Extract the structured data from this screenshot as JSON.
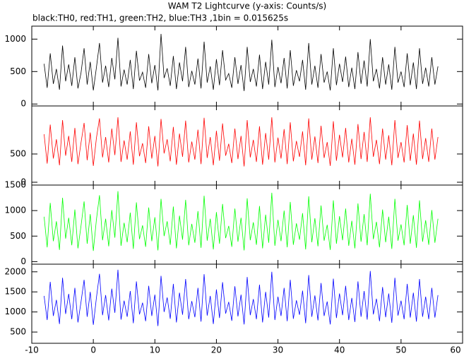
{
  "chart_data": {
    "type": "line",
    "title": "WAM T2 Lightcurve (y-axis: Counts/s)",
    "subtitle": "black:TH0, red:TH1, green:TH2, blue:TH3 ,1bin = 0.015625s",
    "xlim": [
      -10,
      60
    ],
    "xticks": [
      -10,
      0,
      10,
      20,
      30,
      40,
      50,
      60
    ],
    "x": [
      -8,
      -7.5,
      -7,
      -6.5,
      -6,
      -5.5,
      -5,
      -4.5,
      -4,
      -3.5,
      -3,
      -2.5,
      -2,
      -1.5,
      -1,
      -0.5,
      0,
      0.5,
      1,
      1.5,
      2,
      2.5,
      3,
      3.5,
      4,
      4.5,
      5,
      5.5,
      6,
      6.5,
      7,
      7.5,
      8,
      8.5,
      9,
      9.5,
      10,
      10.5,
      11,
      11.5,
      12,
      12.5,
      13,
      13.5,
      14,
      14.5,
      15,
      15.5,
      16,
      16.5,
      17,
      17.5,
      18,
      18.5,
      19,
      19.5,
      20,
      20.5,
      21,
      21.5,
      22,
      22.5,
      23,
      23.5,
      24,
      24.5,
      25,
      25.5,
      26,
      26.5,
      27,
      27.5,
      28,
      28.5,
      29,
      29.5,
      30,
      30.5,
      31,
      31.5,
      32,
      32.5,
      33,
      33.5,
      34,
      34.5,
      35,
      35.5,
      36,
      36.5,
      37,
      37.5,
      38,
      38.5,
      39,
      39.5,
      40,
      40.5,
      41,
      41.5,
      42,
      42.5,
      43,
      43.5,
      44,
      44.5,
      45,
      45.5,
      46,
      46.5,
      47,
      47.5,
      48,
      48.5,
      49,
      49.5,
      50,
      50.5,
      51,
      51.5,
      52,
      52.5,
      53,
      53.5,
      54,
      54.5,
      55,
      55.5,
      56
    ],
    "series": [
      {
        "color": "#000000",
        "ylim": [
          -30,
          1200
        ],
        "yticks": [
          0,
          500,
          1000
        ],
        "values": [
          620,
          250,
          780,
          310,
          540,
          220,
          900,
          350,
          610,
          280,
          720,
          240,
          480,
          860,
          300,
          650,
          210,
          560,
          940,
          330,
          590,
          260,
          710,
          380,
          1020,
          270,
          530,
          300,
          680,
          230,
          820,
          360,
          490,
          250,
          770,
          320,
          600,
          210,
          1080,
          400,
          550,
          280,
          740,
          230,
          640,
          350,
          880,
          260,
          510,
          300,
          700,
          240,
          960,
          330,
          580,
          220,
          690,
          290,
          830,
          370,
          470,
          250,
          720,
          310,
          600,
          200,
          880,
          340,
          540,
          270,
          760,
          230,
          650,
          300,
          990,
          260,
          570,
          320,
          710,
          240,
          830,
          280,
          520,
          350,
          680,
          220,
          940,
          300,
          590,
          250,
          770,
          330,
          500,
          210,
          860,
          290,
          620,
          340,
          730,
          260,
          560,
          230,
          800,
          310,
          670,
          270,
          1000,
          350,
          540,
          240,
          720,
          300,
          610,
          220,
          880,
          330,
          500,
          260,
          780,
          290,
          640,
          230,
          860,
          310,
          560,
          270,
          720,
          300,
          580
        ]
      },
      {
        "color": "#ff0000",
        "ylim": [
          -50,
          1350
        ],
        "yticks": [
          0,
          500
        ],
        "values": [
          850,
          330,
          1020,
          420,
          760,
          300,
          1100,
          470,
          820,
          360,
          960,
          320,
          700,
          1050,
          390,
          880,
          290,
          780,
          1130,
          440,
          800,
          350,
          950,
          480,
          1150,
          360,
          740,
          400,
          900,
          310,
          1060,
          460,
          690,
          340,
          990,
          420,
          820,
          280,
          1120,
          510,
          760,
          370,
          980,
          310,
          860,
          450,
          1090,
          350,
          720,
          400,
          930,
          320,
          1140,
          430,
          800,
          300,
          910,
          380,
          1040,
          470,
          680,
          340,
          950,
          410,
          820,
          280,
          1100,
          440,
          750,
          360,
          990,
          310,
          870,
          400,
          1150,
          350,
          790,
          420,
          940,
          320,
          1060,
          370,
          730,
          450,
          900,
          300,
          1130,
          400,
          810,
          340,
          1000,
          430,
          710,
          290,
          1080,
          380,
          840,
          440,
          960,
          350,
          770,
          310,
          1030,
          410,
          890,
          360,
          1150,
          450,
          750,
          320,
          950,
          400,
          830,
          300,
          1100,
          430,
          710,
          350,
          1010,
          380,
          860,
          310,
          1090,
          410,
          780,
          360,
          950,
          400,
          800
        ]
      },
      {
        "color": "#00ff00",
        "ylim": [
          -50,
          1500
        ],
        "yticks": [
          0,
          500,
          1000,
          1500
        ],
        "values": [
          880,
          280,
          1150,
          400,
          790,
          230,
          1250,
          450,
          860,
          320,
          1020,
          260,
          700,
          1180,
          350,
          930,
          210,
          820,
          1300,
          420,
          840,
          300,
          1010,
          470,
          1380,
          310,
          760,
          380,
          960,
          250,
          1160,
          440,
          710,
          290,
          1060,
          400,
          870,
          220,
          1230,
          500,
          790,
          330,
          1080,
          260,
          900,
          430,
          1210,
          320,
          740,
          370,
          990,
          270,
          1290,
          410,
          840,
          240,
          970,
          350,
          1130,
          460,
          700,
          290,
          1040,
          390,
          860,
          220,
          1240,
          420,
          770,
          330,
          1090,
          260,
          920,
          370,
          1350,
          310,
          820,
          400,
          1000,
          280,
          1170,
          330,
          750,
          430,
          950,
          240,
          1280,
          380,
          850,
          300,
          1100,
          410,
          720,
          230,
          1200,
          350,
          890,
          420,
          1040,
          310,
          800,
          260,
          1140,
          390,
          930,
          320,
          1330,
          440,
          780,
          280,
          1020,
          380,
          880,
          250,
          1230,
          410,
          730,
          320,
          1110,
          350,
          910,
          270,
          1200,
          390,
          810,
          330,
          1010,
          370,
          840
        ]
      },
      {
        "color": "#0000ff",
        "ylim": [
          220,
          2190
        ],
        "yticks": [
          500,
          1000,
          1500,
          2000
        ],
        "values": [
          1400,
          800,
          1750,
          900,
          1300,
          700,
          1850,
          950,
          1450,
          820,
          1600,
          740,
          1250,
          1800,
          880,
          1500,
          680,
          1350,
          1950,
          920,
          1420,
          790,
          1580,
          980,
          2050,
          810,
          1280,
          880,
          1520,
          720,
          1760,
          940,
          1230,
          770,
          1650,
          900,
          1430,
          650,
          1900,
          1000,
          1360,
          830,
          1700,
          740,
          1480,
          930,
          1820,
          820,
          1270,
          870,
          1600,
          760,
          1940,
          910,
          1400,
          700,
          1560,
          850,
          1740,
          960,
          1250,
          780,
          1640,
          890,
          1430,
          690,
          1870,
          920,
          1320,
          820,
          1680,
          740,
          1500,
          860,
          2000,
          800,
          1380,
          900,
          1600,
          770,
          1800,
          830,
          1290,
          930,
          1530,
          720,
          1920,
          880,
          1410,
          790,
          1720,
          900,
          1260,
          690,
          1830,
          850,
          1460,
          920,
          1650,
          800,
          1350,
          750,
          1760,
          880,
          1520,
          810,
          2020,
          940,
          1330,
          770,
          1620,
          870,
          1460,
          730,
          1850,
          910,
          1280,
          820,
          1700,
          860,
          1480,
          760,
          1820,
          880,
          1380,
          820,
          1600,
          860,
          1420
        ]
      }
    ]
  }
}
